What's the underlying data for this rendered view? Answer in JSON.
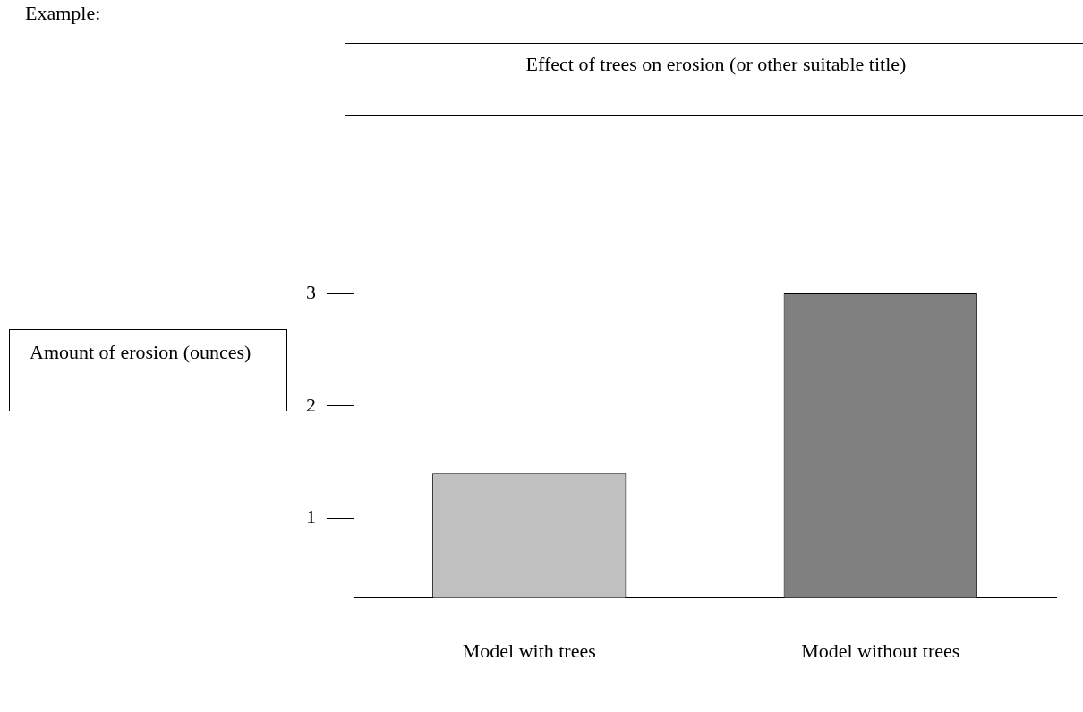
{
  "chart_data": {
    "type": "bar",
    "title": "Effect of trees on erosion (or other suitable title)",
    "ylabel": "Amount of erosion (ounces)",
    "categories": [
      "Model with trees",
      "Model without trees"
    ],
    "values": [
      1.4,
      3.0
    ],
    "colors": [
      "#c0c0c0",
      "#808080"
    ],
    "ylim": [
      0.3,
      3.5
    ],
    "yticks": [
      1,
      2,
      3
    ],
    "annotations": [
      "Example:"
    ]
  }
}
